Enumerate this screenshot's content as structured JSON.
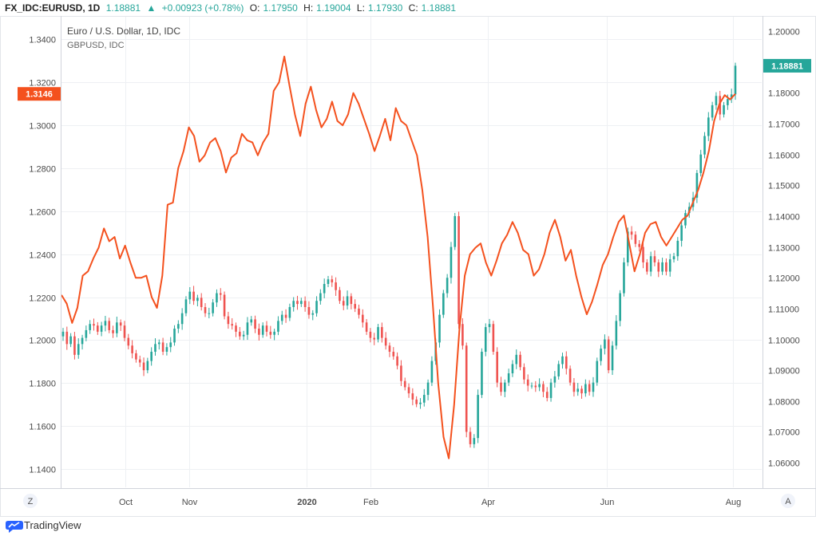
{
  "header": {
    "symbol": "FX_IDC:EURUSD, 1D",
    "last": "1.18881",
    "change": "+0.00923 (+0.78%)",
    "open_label": "O:",
    "open": "1.17950",
    "high_label": "H:",
    "high": "1.19004",
    "low_label": "L:",
    "low": "1.17930",
    "close_label": "C:",
    "close": "1.18881"
  },
  "legend": {
    "main": "Euro / U.S. Dollar, 1D, IDC",
    "overlay": "GBPUSD, IDC"
  },
  "buttons": {
    "z": "Z",
    "a": "A"
  },
  "footer": {
    "brand": "TradingView"
  },
  "colors": {
    "up": "#26a69a",
    "down": "#ef5350",
    "gbp_line": "#f4511e",
    "grid": "#eef0f3"
  },
  "chart_data": {
    "type": "line",
    "x_tick_labels": [
      "Oct",
      "Nov",
      "2020",
      "Feb",
      "Apr",
      "Jun",
      "Aug"
    ],
    "left_axis": {
      "ticks": [
        "1.1400",
        "1.1600",
        "1.1800",
        "1.2000",
        "1.2200",
        "1.2400",
        "1.2600",
        "1.2800",
        "1.3000",
        "1.3200",
        "1.3400"
      ],
      "range": [
        1.1315,
        1.3505
      ],
      "last_value_label": "1.3146"
    },
    "right_axis": {
      "ticks": [
        "1.06000",
        "1.07000",
        "1.08000",
        "1.09000",
        "1.10000",
        "1.11000",
        "1.12000",
        "1.13000",
        "1.14000",
        "1.15000",
        "1.16000",
        "1.17000",
        "1.18000",
        "1.19000",
        "1.20000"
      ],
      "range": [
        1.052,
        1.2047
      ],
      "last_value_label": "1.18881"
    },
    "series": [
      {
        "name": "Euro / U.S. Dollar, 1D, IDC",
        "kind": "candles",
        "axis": "right",
        "values": [
          1.1025,
          1.0985,
          1.101,
          1.095,
          1.0985,
          1.1005,
          1.103,
          1.105,
          1.1045,
          1.1025,
          1.1045,
          1.106,
          1.103,
          1.102,
          1.1055,
          1.1045,
          1.1005,
          1.098,
          1.0955,
          1.0935,
          1.0925,
          1.09,
          1.093,
          1.096,
          1.0985,
          1.099,
          1.096,
          1.0975,
          1.099,
          1.1035,
          1.105,
          1.1085,
          1.113,
          1.1155,
          1.1125,
          1.1135,
          1.1105,
          1.1085,
          1.1085,
          1.112,
          1.115,
          1.1145,
          1.1075,
          1.105,
          1.1045,
          1.1025,
          1.101,
          1.1015,
          1.1055,
          1.1065,
          1.1035,
          1.1015,
          1.1045,
          1.1025,
          1.1015,
          1.1025,
          1.106,
          1.108,
          1.107,
          1.1105,
          1.1125,
          1.1115,
          1.1125,
          1.1105,
          1.108,
          1.1085,
          1.1125,
          1.115,
          1.118,
          1.1195,
          1.1185,
          1.116,
          1.1125,
          1.111,
          1.114,
          1.1115,
          1.11,
          1.108,
          1.1055,
          1.1025,
          1.1005,
          1.1,
          1.104,
          1.1005,
          1.098,
          1.096,
          1.0945,
          1.0915,
          1.0865,
          1.0845,
          1.0825,
          1.0805,
          1.079,
          1.0795,
          1.082,
          1.086,
          1.093,
          1.099,
          1.108,
          1.115,
          1.12,
          1.13,
          1.14,
          1.105,
          1.098,
          1.07,
          1.066,
          1.068,
          1.082,
          1.096,
          1.104,
          1.105,
          1.096,
          1.086,
          1.083,
          1.086,
          1.089,
          1.092,
          1.095,
          1.091,
          1.087,
          1.085,
          1.085,
          1.0845,
          1.0855,
          1.083,
          1.081,
          1.086,
          1.088,
          1.092,
          1.0945,
          1.0905,
          1.086,
          1.083,
          1.084,
          1.0825,
          1.0855,
          1.083,
          1.086,
          1.093,
          1.097,
          1.1,
          1.09,
          1.098,
          1.106,
          1.115,
          1.125,
          1.135,
          1.134,
          1.131,
          1.13,
          1.125,
          1.122,
          1.127,
          1.125,
          1.122,
          1.125,
          1.122,
          1.126,
          1.127,
          1.132,
          1.137,
          1.141,
          1.143,
          1.146,
          1.154,
          1.16,
          1.166,
          1.172,
          1.176,
          1.179,
          1.173,
          1.176,
          1.178,
          1.1795,
          1.1888
        ]
      },
      {
        "name": "GBPUSD, IDC",
        "kind": "line",
        "axis": "left",
        "values": [
          1.221,
          1.217,
          1.208,
          1.215,
          1.23,
          1.232,
          1.238,
          1.243,
          1.252,
          1.246,
          1.248,
          1.238,
          1.244,
          1.236,
          1.229,
          1.229,
          1.23,
          1.22,
          1.215,
          1.23,
          1.263,
          1.264,
          1.28,
          1.288,
          1.299,
          1.295,
          1.283,
          1.286,
          1.292,
          1.294,
          1.288,
          1.278,
          1.285,
          1.287,
          1.296,
          1.293,
          1.292,
          1.286,
          1.292,
          1.296,
          1.316,
          1.32,
          1.332,
          1.318,
          1.305,
          1.295,
          1.31,
          1.318,
          1.307,
          1.299,
          1.303,
          1.311,
          1.302,
          1.3,
          1.305,
          1.315,
          1.31,
          1.303,
          1.296,
          1.288,
          1.295,
          1.303,
          1.293,
          1.308,
          1.302,
          1.3,
          1.293,
          1.286,
          1.27,
          1.248,
          1.216,
          1.18,
          1.155,
          1.145,
          1.17,
          1.205,
          1.23,
          1.24,
          1.243,
          1.245,
          1.236,
          1.23,
          1.237,
          1.245,
          1.249,
          1.255,
          1.25,
          1.242,
          1.24,
          1.23,
          1.233,
          1.24,
          1.25,
          1.256,
          1.248,
          1.237,
          1.242,
          1.23,
          1.22,
          1.212,
          1.218,
          1.226,
          1.235,
          1.24,
          1.248,
          1.255,
          1.258,
          1.245,
          1.232,
          1.24,
          1.25,
          1.254,
          1.255,
          1.248,
          1.244,
          1.248,
          1.252,
          1.256,
          1.258,
          1.264,
          1.27,
          1.278,
          1.288,
          1.302,
          1.31,
          1.314,
          1.312,
          1.3146
        ]
      }
    ],
    "grid": true,
    "legend_position": "top-left"
  }
}
